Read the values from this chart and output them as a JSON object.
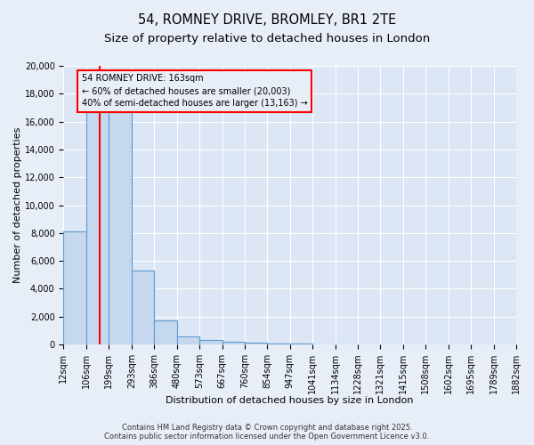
{
  "title_line1": "54, ROMNEY DRIVE, BROMLEY, BR1 2TE",
  "title_line2": "Size of property relative to detached houses in London",
  "xlabel": "Distribution of detached houses by size in London",
  "ylabel": "Number of detached properties",
  "bar_edges": [
    12,
    106,
    199,
    293,
    386,
    480,
    573,
    667,
    760,
    854,
    947,
    1041,
    1134,
    1228,
    1321,
    1415,
    1508,
    1602,
    1695,
    1789,
    1882
  ],
  "bar_heights": [
    8100,
    16700,
    16700,
    5300,
    1700,
    600,
    300,
    180,
    100,
    60,
    35,
    20,
    15,
    10,
    8,
    6,
    5,
    4,
    3,
    2
  ],
  "bar_color": "#c5d8ed",
  "bar_edge_color": "#5b9bd5",
  "red_line_x": 163,
  "ylim": [
    0,
    20000
  ],
  "yticks": [
    0,
    2000,
    4000,
    6000,
    8000,
    10000,
    12000,
    14000,
    16000,
    18000,
    20000
  ],
  "annotation_box_text": "54 ROMNEY DRIVE: 163sqm\n← 60% of detached houses are smaller (20,003)\n40% of semi-detached houses are larger (13,163) →",
  "footer_line1": "Contains HM Land Registry data © Crown copyright and database right 2025.",
  "footer_line2": "Contains public sector information licensed under the Open Government Licence v3.0.",
  "background_color": "#e8eef8",
  "plot_bg_color": "#dce6f4",
  "grid_color": "white",
  "title_fontsize": 10.5,
  "subtitle_fontsize": 9.5,
  "axis_label_fontsize": 8,
  "tick_fontsize": 7,
  "annotation_fontsize": 7,
  "footer_fontsize": 6
}
